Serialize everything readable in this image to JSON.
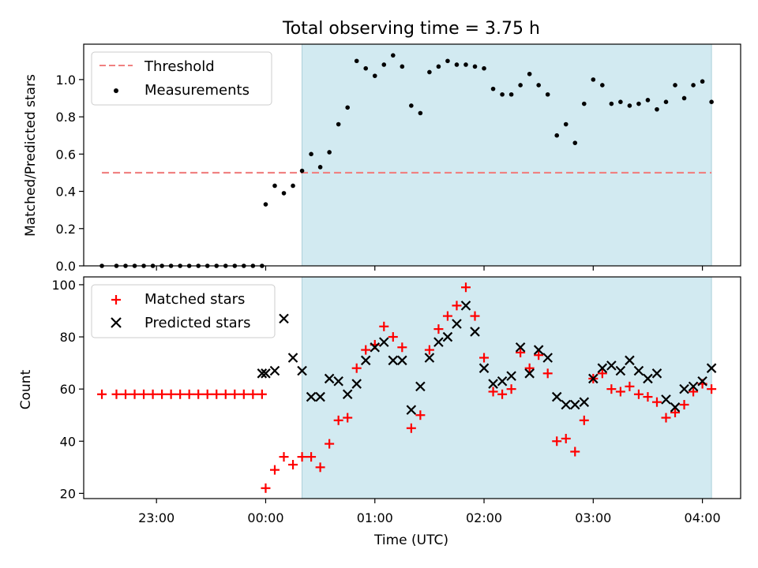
{
  "title": "Total observing time = 3.75 h",
  "chart_data": [
    {
      "type": "scatter",
      "xlabel": "",
      "ylabel": "Matched/Predicted stars",
      "xlim": [
        "22:20",
        "04:21"
      ],
      "ylim": [
        0,
        1.19
      ],
      "yticks": [
        "0.0",
        "0.2",
        "0.4",
        "0.6",
        "0.8",
        "1.0"
      ],
      "shaded_region": {
        "from": "00:20",
        "to": "04:05",
        "color": "#add8e6"
      },
      "legend": {
        "placement": "upper-left",
        "entries": [
          "Threshold",
          "Measurements"
        ]
      },
      "series": [
        {
          "name": "Threshold",
          "kind": "dashed-line",
          "color": "#f08080",
          "x": [
            "22:30",
            "04:05"
          ],
          "values": [
            0.5,
            0.5
          ]
        },
        {
          "name": "Measurements",
          "kind": "dot",
          "color": "#000000",
          "x": [
            "22:30",
            "22:38",
            "22:43",
            "22:48",
            "22:53",
            "22:58",
            "23:03",
            "23:08",
            "23:13",
            "23:18",
            "23:23",
            "23:28",
            "23:33",
            "23:38",
            "23:43",
            "23:48",
            "23:53",
            "23:58",
            "00:00",
            "00:05",
            "00:10",
            "00:15",
            "00:20",
            "00:25",
            "00:30",
            "00:35",
            "00:40",
            "00:45",
            "00:50",
            "00:55",
            "01:00",
            "01:05",
            "01:10",
            "01:15",
            "01:20",
            "01:25",
            "01:30",
            "01:35",
            "01:40",
            "01:45",
            "01:50",
            "01:55",
            "02:00",
            "02:05",
            "02:10",
            "02:15",
            "02:20",
            "02:25",
            "02:30",
            "02:35",
            "02:40",
            "02:45",
            "02:50",
            "02:55",
            "03:00",
            "03:05",
            "03:10",
            "03:15",
            "03:20",
            "03:25",
            "03:30",
            "03:35",
            "03:40",
            "03:45",
            "03:50",
            "03:55",
            "04:00",
            "04:05"
          ],
          "values": [
            0,
            0,
            0,
            0,
            0,
            0,
            0,
            0,
            0,
            0,
            0,
            0,
            0,
            0,
            0,
            0,
            0,
            0,
            0.33,
            0.43,
            0.39,
            0.43,
            0.51,
            0.6,
            0.53,
            0.61,
            0.76,
            0.85,
            1.1,
            1.06,
            1.02,
            1.08,
            1.13,
            1.07,
            0.86,
            0.82,
            1.04,
            1.07,
            1.1,
            1.08,
            1.08,
            1.07,
            1.06,
            0.95,
            0.92,
            0.92,
            0.97,
            1.03,
            0.97,
            0.92,
            0.7,
            0.76,
            0.66,
            0.87,
            1.0,
            0.97,
            0.87,
            0.88,
            0.86,
            0.87,
            0.89,
            0.84,
            0.88,
            0.97,
            0.9,
            0.97,
            0.99,
            0.88
          ]
        }
      ]
    },
    {
      "type": "scatter",
      "xlabel": "Time (UTC)",
      "ylabel": "Count",
      "xlim": [
        "22:20",
        "04:21"
      ],
      "ylim": [
        18,
        103
      ],
      "xticks": [
        "23:00",
        "00:00",
        "01:00",
        "02:00",
        "03:00",
        "04:00"
      ],
      "yticks": [
        "20",
        "40",
        "60",
        "80",
        "100"
      ],
      "shaded_region": {
        "from": "00:20",
        "to": "04:05",
        "color": "#add8e6"
      },
      "legend": {
        "placement": "upper-left",
        "entries": [
          "Matched stars",
          "Predicted stars"
        ]
      },
      "series": [
        {
          "name": "Matched stars",
          "marker": "+",
          "color": "#ff0000",
          "x": [
            "22:30",
            "22:38",
            "22:43",
            "22:48",
            "22:53",
            "22:58",
            "23:03",
            "23:08",
            "23:13",
            "23:18",
            "23:23",
            "23:28",
            "23:33",
            "23:38",
            "23:43",
            "23:48",
            "23:53",
            "23:58",
            "00:00",
            "00:05",
            "00:10",
            "00:15",
            "00:20",
            "00:25",
            "00:30",
            "00:35",
            "00:40",
            "00:45",
            "00:50",
            "00:55",
            "01:00",
            "01:05",
            "01:10",
            "01:15",
            "01:20",
            "01:25",
            "01:30",
            "01:35",
            "01:40",
            "01:45",
            "01:50",
            "01:55",
            "02:00",
            "02:05",
            "02:10",
            "02:15",
            "02:20",
            "02:25",
            "02:30",
            "02:35",
            "02:40",
            "02:45",
            "02:50",
            "02:55",
            "03:00",
            "03:05",
            "03:10",
            "03:15",
            "03:20",
            "03:25",
            "03:30",
            "03:35",
            "03:40",
            "03:45",
            "03:50",
            "03:55",
            "04:00",
            "04:05"
          ],
          "values": [
            58,
            58,
            58,
            58,
            58,
            58,
            58,
            58,
            58,
            58,
            58,
            58,
            58,
            58,
            58,
            58,
            58,
            58,
            22,
            29,
            34,
            31,
            34,
            34,
            30,
            39,
            48,
            49,
            68,
            75,
            77,
            84,
            80,
            76,
            45,
            50,
            75,
            83,
            88,
            92,
            99,
            88,
            72,
            59,
            58,
            60,
            74,
            68,
            73,
            66,
            40,
            41,
            36,
            48,
            64,
            66,
            60,
            59,
            61,
            58,
            57,
            55,
            49,
            51,
            54,
            59,
            62,
            60
          ]
        },
        {
          "name": "Predicted stars",
          "marker": "x",
          "color": "#000000",
          "x": [
            "23:58",
            "00:00",
            "00:05",
            "00:10",
            "00:15",
            "00:20",
            "00:25",
            "00:30",
            "00:35",
            "00:40",
            "00:45",
            "00:50",
            "00:55",
            "01:00",
            "01:05",
            "01:10",
            "01:15",
            "01:20",
            "01:25",
            "01:30",
            "01:35",
            "01:40",
            "01:45",
            "01:50",
            "01:55",
            "02:00",
            "02:05",
            "02:10",
            "02:15",
            "02:20",
            "02:25",
            "02:30",
            "02:35",
            "02:40",
            "02:45",
            "02:50",
            "02:55",
            "03:00",
            "03:05",
            "03:10",
            "03:15",
            "03:20",
            "03:25",
            "03:30",
            "03:35",
            "03:40",
            "03:45",
            "03:50",
            "03:55",
            "04:00",
            "04:05"
          ],
          "values": [
            66,
            66,
            67,
            87,
            72,
            67,
            57,
            57,
            64,
            63,
            58,
            62,
            71,
            76,
            78,
            71,
            71,
            52,
            61,
            72,
            78,
            80,
            85,
            92,
            82,
            68,
            62,
            63,
            65,
            76,
            66,
            75,
            72,
            57,
            54,
            54,
            55,
            64,
            68,
            69,
            67,
            71,
            67,
            64,
            66,
            56,
            53,
            60,
            61,
            63,
            68
          ]
        }
      ]
    }
  ]
}
